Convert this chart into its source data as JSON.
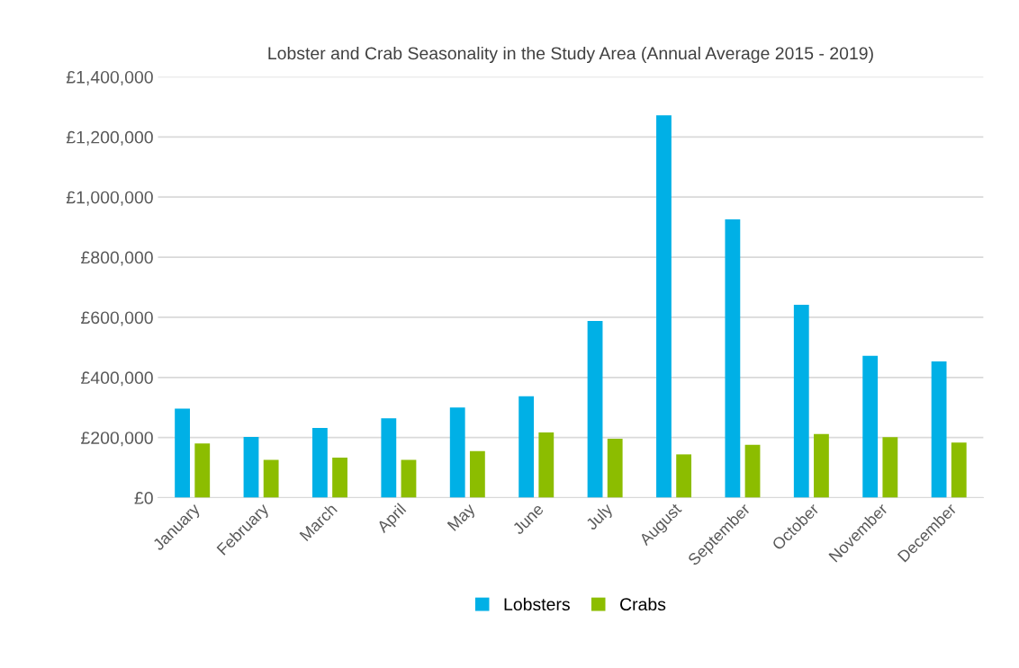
{
  "chart_data": {
    "type": "bar",
    "title": "Lobster and Crab Seasonality in the Study Area (Annual Average 2015 - 2019)",
    "categories": [
      "January",
      "February",
      "March",
      "April",
      "May",
      "June",
      "July",
      "August",
      "September",
      "October",
      "November",
      "December"
    ],
    "series": [
      {
        "name": "Lobsters",
        "color": "#00b0e6",
        "values": [
          296000,
          202000,
          232000,
          264000,
          300000,
          337000,
          588000,
          1272000,
          926000,
          642000,
          472000,
          453000
        ]
      },
      {
        "name": "Crabs",
        "color": "#8cbd00",
        "values": [
          180000,
          126000,
          133000,
          126000,
          155000,
          217000,
          196000,
          144000,
          176000,
          212000,
          201000,
          183000
        ]
      }
    ],
    "ylim": [
      0,
      1400000
    ],
    "yticks": [
      {
        "value": 0,
        "label": "£0"
      },
      {
        "value": 200000,
        "label": "£200,000"
      },
      {
        "value": 400000,
        "label": "£400,000"
      },
      {
        "value": 600000,
        "label": "£600,000"
      },
      {
        "value": 800000,
        "label": "£800,000"
      },
      {
        "value": 1000000,
        "label": "£1,000,000"
      },
      {
        "value": 1200000,
        "label": "£1,200,000"
      },
      {
        "value": 1400000,
        "label": "£1,400,000"
      }
    ],
    "grid": "y",
    "legend": "bottom"
  }
}
